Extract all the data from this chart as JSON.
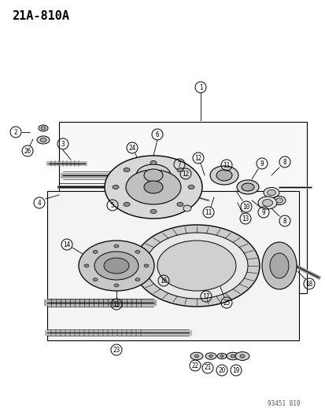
{
  "title": "21A-810A",
  "watermark": "93451 810",
  "bg_color": "#ffffff",
  "line_color": "#000000",
  "part_numbers": [
    1,
    2,
    3,
    4,
    5,
    6,
    7,
    8,
    9,
    10,
    11,
    12,
    13,
    14,
    15,
    16,
    17,
    18,
    19,
    20,
    21,
    22,
    23,
    24,
    25,
    26
  ],
  "figsize": [
    4.14,
    5.33
  ],
  "dpi": 100
}
